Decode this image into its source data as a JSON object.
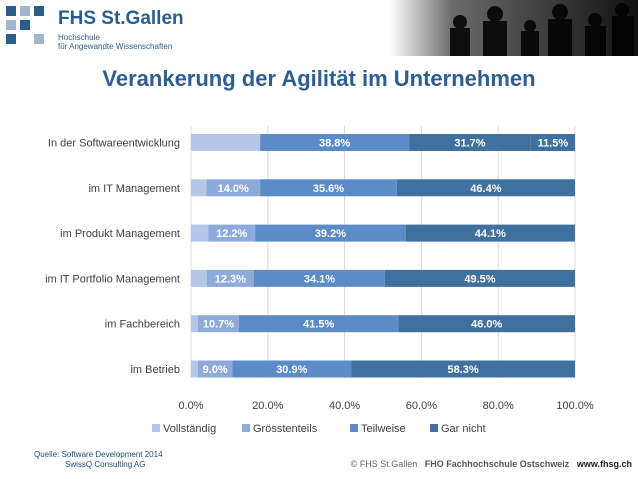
{
  "header": {
    "logo_name": "FHS St.Gallen",
    "logo_sub_1": "Hochschule",
    "logo_sub_2": "für Angewandte Wissenschaften"
  },
  "title": "Verankerung der Agilität im Unternehmen",
  "colors": {
    "vollstaendig": "#b4c7e7",
    "groesstenteils": "#8eaadb",
    "teilweise": "#5b8cc8",
    "gar_nicht": "#40719e"
  },
  "chart_data": {
    "type": "bar",
    "orientation": "horizontal",
    "stacked": true,
    "title": "Verankerung der Agilität im Unternehmen",
    "categories": [
      "In der Softwareentwicklung",
      "im IT Management",
      "im Produkt Management",
      "im IT Portfolio Management",
      "im Fachbereich",
      "im Betrieb"
    ],
    "series": [
      {
        "name": "Vollständig",
        "values": [
          18.0,
          4.0,
          4.5,
          4.1,
          1.8,
          1.8
        ],
        "labels": [
          "",
          "",
          "",
          "",
          "",
          ""
        ]
      },
      {
        "name": "Grösstenteils",
        "values": [
          null,
          14.0,
          12.2,
          12.3,
          10.7,
          9.0
        ],
        "labels": [
          "",
          "14.0%",
          "12.2%",
          "12.3%",
          "10.7%",
          "9.0%"
        ]
      },
      {
        "name": "Teilweise",
        "values": [
          38.8,
          35.6,
          39.2,
          34.1,
          41.5,
          30.9
        ],
        "labels": [
          "38.8%",
          "35.6%",
          "39.2%",
          "34.1%",
          "41.5%",
          "30.9%"
        ]
      },
      {
        "name": "Gar nicht",
        "values": [
          31.7,
          46.4,
          44.1,
          49.5,
          46.0,
          58.3
        ],
        "labels": [
          "31.7%",
          "46.4%",
          "44.1%",
          "49.5%",
          "46.0%",
          "58.3%"
        ]
      },
      {
        "name": "",
        "values": [
          11.5,
          0,
          0,
          0,
          0,
          0
        ],
        "labels": [
          "11.5%",
          "",
          "",
          "",
          "",
          ""
        ]
      }
    ],
    "legend": [
      "Vollständig",
      "Grösstenteils",
      "Teilweise",
      "Gar nicht"
    ],
    "xlim": [
      0,
      100
    ],
    "xticks": [
      "0.0%",
      "20.0%",
      "40.0%",
      "60.0%",
      "80.0%",
      "100.0%"
    ],
    "legend_position": "bottom"
  },
  "source": {
    "line1": "Quelle: Software Development 2014",
    "line2": "SwissQ Consulting AG"
  },
  "footer": {
    "copyright": "© FHS St.Gallen",
    "school": "FHO Fachhochschule Ostschweiz",
    "url": "www.fhsg.ch"
  }
}
